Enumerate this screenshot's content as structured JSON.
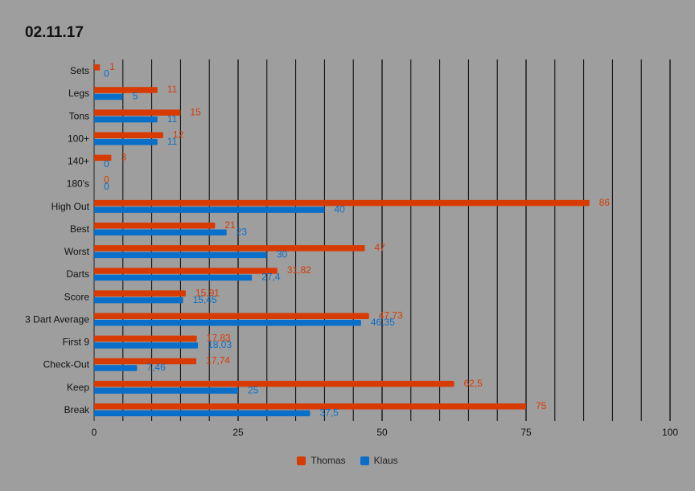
{
  "chart_data": {
    "type": "bar",
    "orientation": "horizontal",
    "title": "02.11.17",
    "categories": [
      "Sets",
      "Legs",
      "Tons",
      "100+",
      "140+",
      "180's",
      "High Out",
      "Best",
      "Worst",
      "Darts",
      "Score",
      "3 Dart Average",
      "First 9",
      "Check-Out",
      "Keep",
      "Break"
    ],
    "series": [
      {
        "name": "Thomas",
        "color": "#d83b01",
        "values": [
          1,
          11,
          15,
          12,
          3,
          0,
          86,
          21,
          47,
          31.82,
          15.91,
          47.73,
          17.83,
          17.74,
          62.5,
          75
        ],
        "labels": [
          "1",
          "11",
          "15",
          "12",
          "3",
          "0",
          "86",
          "21",
          "47",
          "31,82",
          "15,91",
          "47,73",
          "17,83",
          "17,74",
          "62,5",
          "75"
        ]
      },
      {
        "name": "Klaus",
        "color": "#0a6fc9",
        "values": [
          0,
          5,
          11,
          11,
          0,
          0,
          40,
          23,
          30,
          27.4,
          15.45,
          46.35,
          18.03,
          7.46,
          25,
          37.5
        ],
        "labels": [
          "0",
          "5",
          "11",
          "11",
          "0",
          "0",
          "40",
          "23",
          "30",
          "27,4",
          "15,45",
          "46,35",
          "18,03",
          "7,46",
          "25",
          "37,5"
        ]
      }
    ],
    "xlim": [
      0,
      100
    ],
    "xticks": [
      0,
      25,
      50,
      75,
      100
    ],
    "grid": true,
    "legend": "bottom"
  }
}
